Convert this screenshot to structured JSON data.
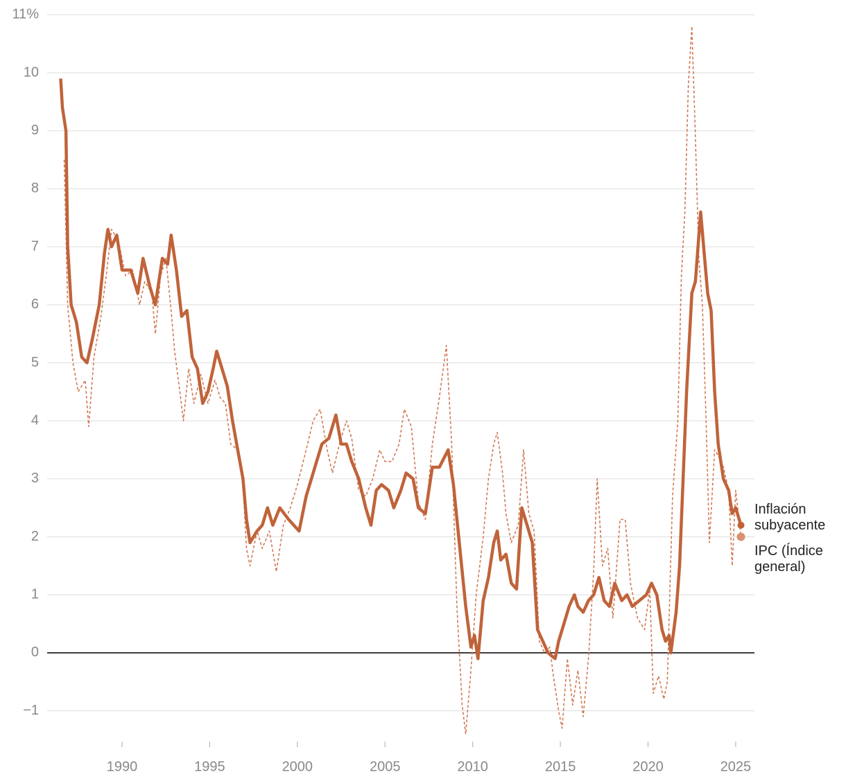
{
  "chart_data": {
    "type": "line",
    "xlim": [
      1985.73,
      2026.07
    ],
    "ylim": [
      -1.5,
      11
    ],
    "xticks": [
      1990,
      1995,
      2000,
      2005,
      2010,
      2015,
      2020,
      2025
    ],
    "yticks": [
      {
        "value": -1,
        "label": "−1"
      },
      0,
      1,
      2,
      3,
      4,
      5,
      6,
      7,
      8,
      9,
      10,
      {
        "value": 11,
        "label": "11%"
      }
    ],
    "grid": true,
    "series": [
      {
        "name": "Inflación subyacente",
        "color": "#c0633a",
        "style": "solid",
        "x": [
          1986.5,
          1986.6,
          1986.8,
          1986.9,
          1987.1,
          1987.4,
          1987.7,
          1988.0,
          1988.3,
          1988.7,
          1989.0,
          1989.2,
          1989.4,
          1989.7,
          1990.0,
          1990.5,
          1990.9,
          1991.2,
          1991.6,
          1991.9,
          1992.3,
          1992.6,
          1992.8,
          1993.1,
          1993.4,
          1993.7,
          1994.0,
          1994.3,
          1994.6,
          1994.9,
          1995.2,
          1995.4,
          1995.7,
          1996.0,
          1996.3,
          1996.6,
          1996.9,
          1997.1,
          1997.3,
          1997.7,
          1998.0,
          1998.3,
          1998.6,
          1999.0,
          1999.5,
          2000.1,
          2000.5,
          2001.0,
          2001.4,
          2001.8,
          2002.2,
          2002.5,
          2002.8,
          2003.1,
          2003.5,
          2003.9,
          2004.2,
          2004.5,
          2004.8,
          2005.2,
          2005.5,
          2005.9,
          2006.2,
          2006.6,
          2006.9,
          2007.3,
          2007.7,
          2008.1,
          2008.6,
          2008.9,
          2009.3,
          2009.6,
          2009.9,
          2010.1,
          2010.3,
          2010.6,
          2010.9,
          2011.2,
          2011.4,
          2011.6,
          2011.9,
          2012.2,
          2012.5,
          2012.8,
          2013.1,
          2013.4,
          2013.7,
          2014.0,
          2014.3,
          2014.7,
          2014.9,
          2015.2,
          2015.5,
          2015.8,
          2016.0,
          2016.3,
          2016.6,
          2016.9,
          2017.2,
          2017.5,
          2017.8,
          2018.1,
          2018.5,
          2018.8,
          2019.1,
          2019.5,
          2019.9,
          2020.2,
          2020.5,
          2020.8,
          2021.0,
          2021.2,
          2021.3,
          2021.6,
          2021.8,
          2022.0,
          2022.2,
          2022.5,
          2022.7,
          2023.0,
          2023.2,
          2023.4,
          2023.6,
          2023.8,
          2024.0,
          2024.3,
          2024.6,
          2024.8,
          2025.0,
          2025.3
        ],
        "values": [
          9.9,
          9.4,
          9.0,
          7.0,
          6.0,
          5.7,
          5.1,
          5.0,
          5.4,
          6.0,
          6.9,
          7.3,
          7.0,
          7.2,
          6.6,
          6.6,
          6.2,
          6.8,
          6.3,
          6.0,
          6.8,
          6.7,
          7.2,
          6.6,
          5.8,
          5.9,
          5.1,
          4.9,
          4.3,
          4.5,
          4.9,
          5.2,
          4.9,
          4.6,
          4.0,
          3.5,
          3.0,
          2.3,
          1.9,
          2.1,
          2.2,
          2.5,
          2.2,
          2.5,
          2.3,
          2.1,
          2.7,
          3.2,
          3.6,
          3.7,
          4.1,
          3.6,
          3.6,
          3.3,
          3.0,
          2.5,
          2.2,
          2.8,
          2.9,
          2.8,
          2.5,
          2.8,
          3.1,
          3.0,
          2.5,
          2.4,
          3.2,
          3.2,
          3.5,
          2.9,
          1.7,
          0.8,
          0.1,
          0.3,
          -0.1,
          0.9,
          1.3,
          1.9,
          2.1,
          1.6,
          1.7,
          1.2,
          1.1,
          2.5,
          2.2,
          1.9,
          0.4,
          0.2,
          0.0,
          -0.1,
          0.2,
          0.5,
          0.8,
          1.0,
          0.8,
          0.7,
          0.9,
          1.0,
          1.3,
          0.9,
          0.8,
          1.2,
          0.9,
          1.0,
          0.8,
          0.9,
          1.0,
          1.2,
          1.0,
          0.4,
          0.2,
          0.3,
          0.0,
          0.7,
          1.5,
          3.0,
          4.5,
          6.2,
          6.4,
          7.6,
          6.9,
          6.2,
          5.9,
          4.5,
          3.6,
          3.0,
          2.8,
          2.4,
          2.5,
          2.2
        ]
      },
      {
        "name": "IPC (Índice general)",
        "color": "#d07a55",
        "style": "dotted",
        "x": [
          1986.7,
          1986.9,
          1987.2,
          1987.5,
          1987.9,
          1988.1,
          1988.4,
          1988.8,
          1989.1,
          1989.4,
          1989.8,
          1990.2,
          1990.6,
          1991.0,
          1991.3,
          1991.7,
          1991.9,
          1992.2,
          1992.5,
          1992.8,
          1993.0,
          1993.3,
          1993.5,
          1993.8,
          1994.1,
          1994.5,
          1994.9,
          1995.3,
          1995.6,
          1995.9,
          1996.2,
          1996.6,
          1996.9,
          1997.1,
          1997.3,
          1997.7,
          1998.0,
          1998.4,
          1998.8,
          1999.2,
          1999.6,
          2000.0,
          2000.5,
          2000.9,
          2001.3,
          2001.7,
          2002.0,
          2002.4,
          2002.8,
          2003.1,
          2003.5,
          2003.9,
          2004.3,
          2004.7,
          2005.0,
          2005.4,
          2005.8,
          2006.1,
          2006.5,
          2006.9,
          2007.3,
          2007.7,
          2008.1,
          2008.5,
          2008.8,
          2009.1,
          2009.4,
          2009.6,
          2009.9,
          2010.2,
          2010.6,
          2010.9,
          2011.2,
          2011.4,
          2011.7,
          2011.9,
          2012.2,
          2012.6,
          2012.9,
          2013.2,
          2013.5,
          2013.8,
          2014.1,
          2014.4,
          2014.6,
          2014.9,
          2015.1,
          2015.4,
          2015.7,
          2016.0,
          2016.3,
          2016.6,
          2016.9,
          2017.1,
          2017.4,
          2017.7,
          2018.0,
          2018.4,
          2018.7,
          2019.0,
          2019.4,
          2019.8,
          2020.1,
          2020.3,
          2020.6,
          2020.9,
          2021.1,
          2021.4,
          2021.7,
          2021.9,
          2022.1,
          2022.3,
          2022.5,
          2022.7,
          2022.9,
          2023.1,
          2023.3,
          2023.5,
          2023.8,
          2024.0,
          2024.3,
          2024.6,
          2024.8,
          2025.0,
          2025.3
        ],
        "values": [
          8.5,
          6.0,
          5.0,
          4.5,
          4.7,
          3.9,
          5.1,
          5.8,
          6.5,
          7.3,
          7.1,
          6.5,
          6.6,
          6.0,
          6.4,
          6.2,
          5.5,
          6.5,
          6.8,
          5.9,
          5.2,
          4.5,
          4.0,
          4.9,
          4.3,
          4.8,
          4.3,
          4.7,
          4.4,
          4.3,
          3.6,
          3.5,
          2.9,
          1.8,
          1.5,
          2.1,
          1.8,
          2.1,
          1.4,
          2.2,
          2.5,
          2.9,
          3.5,
          4.0,
          4.2,
          3.5,
          3.1,
          3.6,
          4.0,
          3.7,
          2.8,
          2.7,
          3.0,
          3.5,
          3.3,
          3.3,
          3.6,
          4.2,
          3.9,
          2.6,
          2.3,
          3.6,
          4.4,
          5.3,
          3.6,
          0.8,
          -0.9,
          -1.4,
          -0.3,
          1.0,
          2.0,
          3.0,
          3.6,
          3.8,
          3.1,
          2.4,
          1.9,
          2.2,
          3.5,
          2.4,
          2.1,
          0.2,
          0.0,
          0.1,
          -0.4,
          -1.0,
          -1.3,
          -0.1,
          -0.9,
          -0.3,
          -1.1,
          -0.1,
          1.4,
          3.0,
          1.5,
          1.8,
          0.6,
          2.3,
          2.3,
          1.2,
          0.6,
          0.4,
          1.1,
          -0.7,
          -0.4,
          -0.8,
          -0.5,
          2.7,
          4.0,
          6.5,
          7.6,
          9.8,
          10.8,
          8.9,
          6.8,
          6.0,
          4.1,
          1.9,
          3.5,
          3.4,
          3.2,
          2.8,
          1.5,
          2.8,
          2.0
        ]
      }
    ]
  }
}
